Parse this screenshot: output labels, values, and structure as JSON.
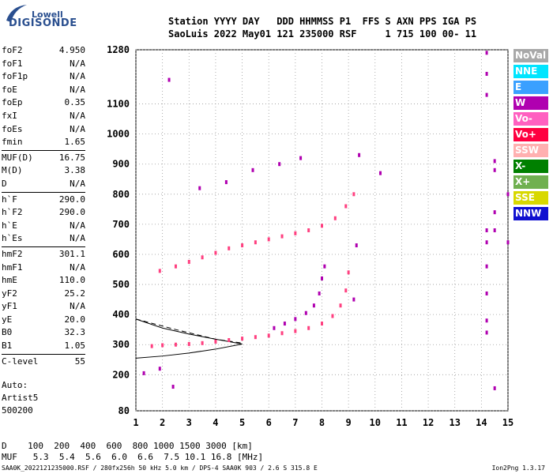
{
  "logo": {
    "top": "Lowell",
    "main": "DIGISONDE"
  },
  "header": {
    "line1": "Station YYYY DAY   DDD HHMMSS P1  FFS S AXN PPS IGA PS",
    "line2": "SaoLuis 2022 May01 121 235000 RSF     1 715 100 00- 11"
  },
  "params": [
    {
      "label": "foF2",
      "value": "4.950"
    },
    {
      "label": "foF1",
      "value": "N/A"
    },
    {
      "label": "foF1p",
      "value": "N/A"
    },
    {
      "label": "foE",
      "value": "N/A"
    },
    {
      "label": "foEp",
      "value": "0.35"
    },
    {
      "label": "fxI",
      "value": "N/A"
    },
    {
      "label": "foEs",
      "value": "N/A"
    },
    {
      "label": "fmin",
      "value": "1.65"
    },
    {
      "label": "MUF(D)",
      "value": "16.75"
    },
    {
      "label": "M(D)",
      "value": "3.38"
    },
    {
      "label": "D",
      "value": "N/A"
    },
    {
      "label": "h`F",
      "value": "290.0"
    },
    {
      "label": "h`F2",
      "value": "290.0"
    },
    {
      "label": "h`E",
      "value": "N/A"
    },
    {
      "label": "h`Es",
      "value": "N/A"
    },
    {
      "label": "hmF2",
      "value": "301.1"
    },
    {
      "label": "hmF1",
      "value": "N/A"
    },
    {
      "label": "hmE",
      "value": "110.0"
    },
    {
      "label": "yF2",
      "value": "25.2"
    },
    {
      "label": "yF1",
      "value": "N/A"
    },
    {
      "label": "yE",
      "value": "20.0"
    },
    {
      "label": "B0",
      "value": "32.3"
    },
    {
      "label": "B1",
      "value": "1.05"
    },
    {
      "label": "C-level",
      "value": "55"
    }
  ],
  "auto": {
    "line1": "Auto:",
    "line2": "Artist5",
    "line3": "500200"
  },
  "bottom": {
    "d_line": "D    100  200  400  600  800 1000 1500 3000 [km]",
    "muf_line": "MUF   5.3  5.4  5.6  6.0  6.6  7.5 10.1 16.8 [MHz]"
  },
  "footer": {
    "left": "SAA0K_2022121235000.RSF / 280fx256h 50 kHz 5.0 km / DPS-4 SAA0K 903 / 2.6 S 315.8 E",
    "right": "Ion2Png 1.3.17"
  },
  "legend": [
    {
      "label": "NoVal",
      "color": "#a8a8a8",
      "text_color": "#ffffff"
    },
    {
      "label": "NNE",
      "color": "#00e5ff",
      "text_color": "#ffffff"
    },
    {
      "label": "E",
      "color": "#3aa0ff",
      "text_color": "#ffffff"
    },
    {
      "label": "W",
      "color": "#b000b0",
      "text_color": "#ffffff"
    },
    {
      "label": "Vo-",
      "color": "#ff60c0",
      "text_color": "#ffffff"
    },
    {
      "label": "Vo+",
      "color": "#ff0040",
      "text_color": "#ffffff"
    },
    {
      "label": "SSW",
      "color": "#ffb0b0",
      "text_color": "#ffffff"
    },
    {
      "label": "X-",
      "color": "#008000",
      "text_color": "#ffffff"
    },
    {
      "label": "X+",
      "color": "#70b050",
      "text_color": "#ffffff"
    },
    {
      "label": "SSE",
      "color": "#d8d800",
      "text_color": "#ffffff"
    },
    {
      "label": "NNW",
      "color": "#1010d0",
      "text_color": "#ffffff"
    }
  ],
  "chart_data": {
    "type": "scatter",
    "xlim": [
      1,
      15
    ],
    "ylim": [
      80,
      1280
    ],
    "x_ticks": [
      1,
      2,
      3,
      4,
      5,
      6,
      7,
      8,
      9,
      10,
      11,
      12,
      13,
      14,
      15
    ],
    "y_ticks": [
      80,
      200,
      300,
      400,
      500,
      600,
      700,
      800,
      900,
      1000,
      1100,
      1280
    ],
    "grid": true,
    "traces": [
      {
        "name": "O-trace",
        "color": "#ff4080",
        "points": [
          [
            1.6,
            295
          ],
          [
            2.0,
            298
          ],
          [
            2.5,
            300
          ],
          [
            3.0,
            302
          ],
          [
            3.5,
            305
          ],
          [
            4.0,
            310
          ],
          [
            4.5,
            315
          ],
          [
            5.0,
            320
          ],
          [
            5.5,
            325
          ],
          [
            6.0,
            330
          ],
          [
            6.5,
            338
          ],
          [
            7.0,
            345
          ],
          [
            7.5,
            355
          ],
          [
            8.0,
            370
          ],
          [
            8.4,
            395
          ],
          [
            8.7,
            430
          ],
          [
            8.9,
            480
          ],
          [
            9.0,
            540
          ]
        ]
      },
      {
        "name": "W-spread",
        "color": "#b000b0",
        "points": [
          [
            6.2,
            355
          ],
          [
            6.6,
            370
          ],
          [
            7.0,
            385
          ],
          [
            7.4,
            405
          ],
          [
            7.7,
            430
          ],
          [
            7.9,
            470
          ],
          [
            8.0,
            520
          ],
          [
            8.1,
            560
          ]
        ]
      },
      {
        "name": "multihop-trace",
        "color": "#ff4080",
        "points": [
          [
            1.9,
            545
          ],
          [
            2.5,
            560
          ],
          [
            3.0,
            575
          ],
          [
            3.5,
            590
          ],
          [
            4.0,
            605
          ],
          [
            4.5,
            620
          ],
          [
            5.0,
            630
          ],
          [
            5.5,
            640
          ],
          [
            6.0,
            650
          ],
          [
            6.5,
            660
          ],
          [
            7.0,
            670
          ],
          [
            7.5,
            680
          ],
          [
            8.0,
            695
          ],
          [
            8.5,
            720
          ],
          [
            8.9,
            760
          ],
          [
            9.2,
            800
          ]
        ]
      },
      {
        "name": "W-column",
        "color": "#b000b0",
        "points": [
          [
            14.2,
            1270
          ],
          [
            14.2,
            1200
          ],
          [
            14.2,
            1130
          ],
          [
            14.2,
            680
          ],
          [
            14.2,
            640
          ],
          [
            14.2,
            560
          ],
          [
            14.2,
            470
          ],
          [
            14.2,
            380
          ],
          [
            14.2,
            340
          ],
          [
            14.5,
            740
          ],
          [
            14.5,
            680
          ],
          [
            14.5,
            910
          ],
          [
            14.5,
            880
          ],
          [
            14.5,
            155
          ],
          [
            15.0,
            800
          ],
          [
            15.0,
            640
          ]
        ]
      },
      {
        "name": "scattered",
        "color": "#b000b0",
        "points": [
          [
            2.25,
            1180
          ],
          [
            3.4,
            820
          ],
          [
            4.4,
            840
          ],
          [
            5.4,
            880
          ],
          [
            6.4,
            900
          ],
          [
            7.2,
            920
          ],
          [
            9.4,
            930
          ],
          [
            10.2,
            870
          ],
          [
            9.3,
            630
          ],
          [
            9.2,
            450
          ],
          [
            1.9,
            220
          ],
          [
            1.3,
            205
          ],
          [
            2.4,
            160
          ]
        ]
      }
    ],
    "profile": {
      "color": "#000000",
      "points": [
        [
          1.0,
          255
        ],
        [
          2.0,
          262
        ],
        [
          3.0,
          272
        ],
        [
          4.0,
          285
        ],
        [
          5.0,
          302
        ],
        [
          4.5,
          310
        ],
        [
          4.0,
          318
        ],
        [
          3.0,
          335
        ],
        [
          2.0,
          355
        ],
        [
          1.0,
          385
        ]
      ]
    }
  }
}
